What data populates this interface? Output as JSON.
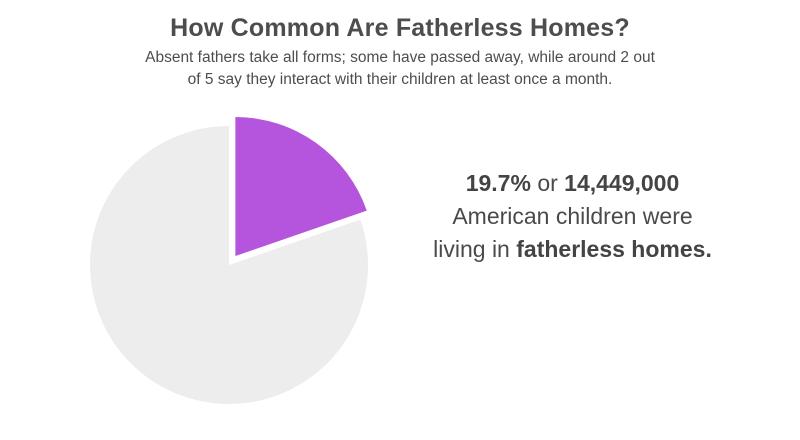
{
  "header": {
    "title": "How Common Are Fatherless Homes?",
    "subtitle_line1": "Absent fathers take all forms; some have passed away, while around 2 out",
    "subtitle_line2": "of 5 say they interact with their children at least once a month."
  },
  "callout": {
    "percent": "19.7%",
    "connector": "or",
    "count": "14,449,000",
    "line2": "American children were",
    "line3_prefix": "living in",
    "line3_bold": "fatherless homes."
  },
  "colors": {
    "highlight": "#b554dc",
    "rest": "#ededed"
  },
  "chart_data": {
    "type": "pie",
    "title": "How Common Are Fatherless Homes?",
    "slices": [
      {
        "value": 19.7,
        "color": "#b554dc",
        "exploded": true
      },
      {
        "value": 80.3,
        "color": "#ededed",
        "exploded": false
      }
    ]
  }
}
